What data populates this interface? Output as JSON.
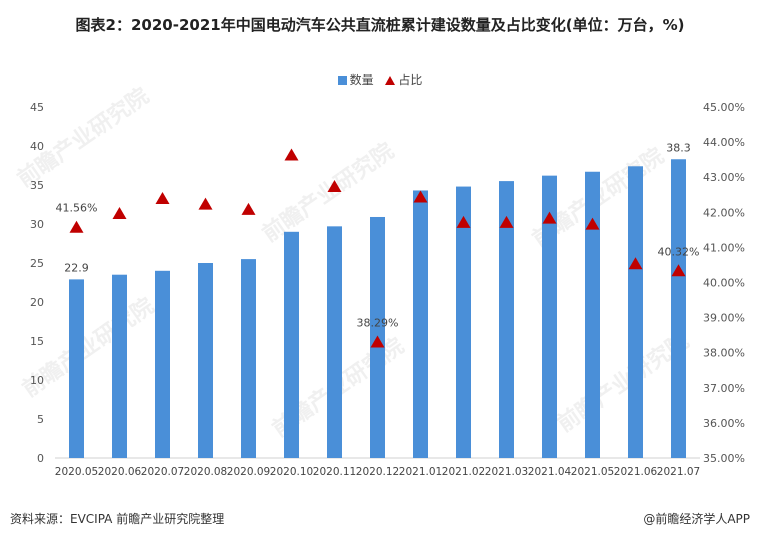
{
  "title": "图表2：2020-2021年中国电动汽车公共直流桩累计建设数量及占比变化(单位：万台，%)",
  "legend": {
    "bar_label": "数量",
    "marker_label": "占比"
  },
  "footer": {
    "source": "资料来源：EVCIPA 前瞻产业研究院整理",
    "credit": "@前瞻经济学人APP"
  },
  "watermark": "前瞻产业研究院",
  "colors": {
    "bar": "#4a8fd8",
    "marker": "#c00000",
    "axis": "#d0d0d0"
  },
  "chart_data": {
    "type": "bar",
    "categories": [
      "2020.05",
      "2020.06",
      "2020.07",
      "2020.08",
      "2020.09",
      "2020.10",
      "2020.11",
      "2020.12",
      "2021.01",
      "2021.02",
      "2021.03",
      "2021.04",
      "2021.05",
      "2021.06",
      "2021.07"
    ],
    "series": [
      {
        "name": "数量",
        "type": "bar",
        "axis": "left",
        "values": [
          22.9,
          23.5,
          24.0,
          25.0,
          25.5,
          29.0,
          29.7,
          30.9,
          34.3,
          34.8,
          35.5,
          36.2,
          36.7,
          37.4,
          38.3
        ]
      },
      {
        "name": "占比",
        "type": "marker",
        "axis": "right",
        "values": [
          41.56,
          41.95,
          42.38,
          42.22,
          42.07,
          43.62,
          42.72,
          38.29,
          42.42,
          41.7,
          41.7,
          41.82,
          41.65,
          40.52,
          40.32
        ]
      }
    ],
    "data_labels": [
      {
        "series": 0,
        "index": 0,
        "text": "22.9"
      },
      {
        "series": 0,
        "index": 14,
        "text": "38.3"
      },
      {
        "series": 1,
        "index": 0,
        "text": "41.56%"
      },
      {
        "series": 1,
        "index": 7,
        "text": "38.29%"
      },
      {
        "series": 1,
        "index": 14,
        "text": "40.32%"
      }
    ],
    "y_left": {
      "ticks": [
        0,
        5,
        10,
        15,
        20,
        25,
        30,
        35,
        40,
        45
      ],
      "ylim": [
        0,
        45
      ]
    },
    "y_right": {
      "ticks": [
        "35.00%",
        "36.00%",
        "37.00%",
        "38.00%",
        "39.00%",
        "40.00%",
        "41.00%",
        "42.00%",
        "43.00%",
        "44.00%",
        "45.00%"
      ],
      "ylim": [
        35,
        45
      ]
    },
    "grid": false,
    "legend_position": "top-center"
  }
}
